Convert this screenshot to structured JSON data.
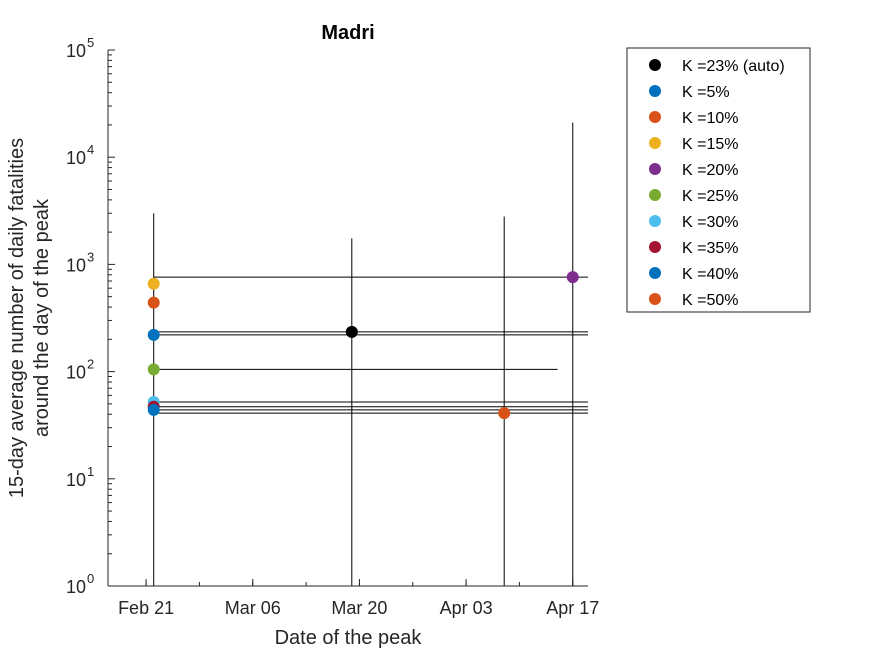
{
  "chart_data": {
    "type": "scatter",
    "title": "Madri",
    "xlabel": "Date of the peak",
    "ylabel": [
      "15-day average number of daily fatalities",
      "around the day of the peak"
    ],
    "yscale": "log",
    "ylim": [
      1,
      100000
    ],
    "xlim": [
      "2020-02-16",
      "2020-04-19"
    ],
    "grid": false,
    "legend_location": "outside-right-top",
    "x_ticks": [
      {
        "date": "2020-02-21",
        "label": "Feb 21"
      },
      {
        "date": "2020-03-06",
        "label": "Mar 06"
      },
      {
        "date": "2020-03-20",
        "label": "Mar 20"
      },
      {
        "date": "2020-04-03",
        "label": "Apr 03"
      },
      {
        "date": "2020-04-17",
        "label": "Apr 17"
      }
    ],
    "y_ticks": [
      {
        "value": 1,
        "base": "10",
        "exp": "0"
      },
      {
        "value": 10,
        "base": "10",
        "exp": "1"
      },
      {
        "value": 100,
        "base": "10",
        "exp": "2"
      },
      {
        "value": 1000,
        "base": "10",
        "exp": "3"
      },
      {
        "value": 10000,
        "base": "10",
        "exp": "4"
      },
      {
        "value": 100000,
        "base": "10",
        "exp": "5"
      }
    ],
    "series": [
      {
        "name": "K =23% (auto)",
        "color": "#000000",
        "x": "2020-03-19",
        "y": 235,
        "x_err": [
          "2020-02-22",
          "2020-04-19"
        ],
        "y_err": [
          1,
          1750
        ]
      },
      {
        "name": "K =5%",
        "color": "#0072BD",
        "x": "2020-02-22",
        "y": 220,
        "x_err": [
          "2020-02-22",
          "2020-04-19"
        ],
        "y_err": [
          1,
          3000
        ]
      },
      {
        "name": "K =10%",
        "color": "#D95319",
        "x": "2020-02-22",
        "y": 440,
        "x_err": null,
        "y_err": null
      },
      {
        "name": "K =15%",
        "color": "#EDB120",
        "x": "2020-02-22",
        "y": 660,
        "x_err": null,
        "y_err": null
      },
      {
        "name": "K =20%",
        "color": "#7E2F8E",
        "x": "2020-04-17",
        "y": 760,
        "x_err": [
          "2020-02-22",
          "2020-04-19"
        ],
        "y_err": [
          1,
          21000
        ]
      },
      {
        "name": "K =25%",
        "color": "#77AC30",
        "x": "2020-02-22",
        "y": 105,
        "x_err": [
          "2020-02-22",
          "2020-04-15"
        ],
        "y_err": null
      },
      {
        "name": "K =30%",
        "color": "#4DBEEE",
        "x": "2020-02-22",
        "y": 52,
        "x_err": [
          "2020-02-22",
          "2020-04-19"
        ],
        "y_err": null
      },
      {
        "name": "K =35%",
        "color": "#A2142F",
        "x": "2020-02-22",
        "y": 47,
        "x_err": [
          "2020-02-22",
          "2020-04-19"
        ],
        "y_err": null
      },
      {
        "name": "K =40%",
        "color": "#0072BD",
        "x": "2020-02-22",
        "y": 44,
        "x_err": [
          "2020-02-22",
          "2020-04-19"
        ],
        "y_err": null
      },
      {
        "name": "K =50%",
        "color": "#D95319",
        "x": "2020-04-08",
        "y": 41,
        "x_err": [
          "2020-02-22",
          "2020-04-19"
        ],
        "y_err": [
          1,
          2800
        ]
      }
    ]
  }
}
